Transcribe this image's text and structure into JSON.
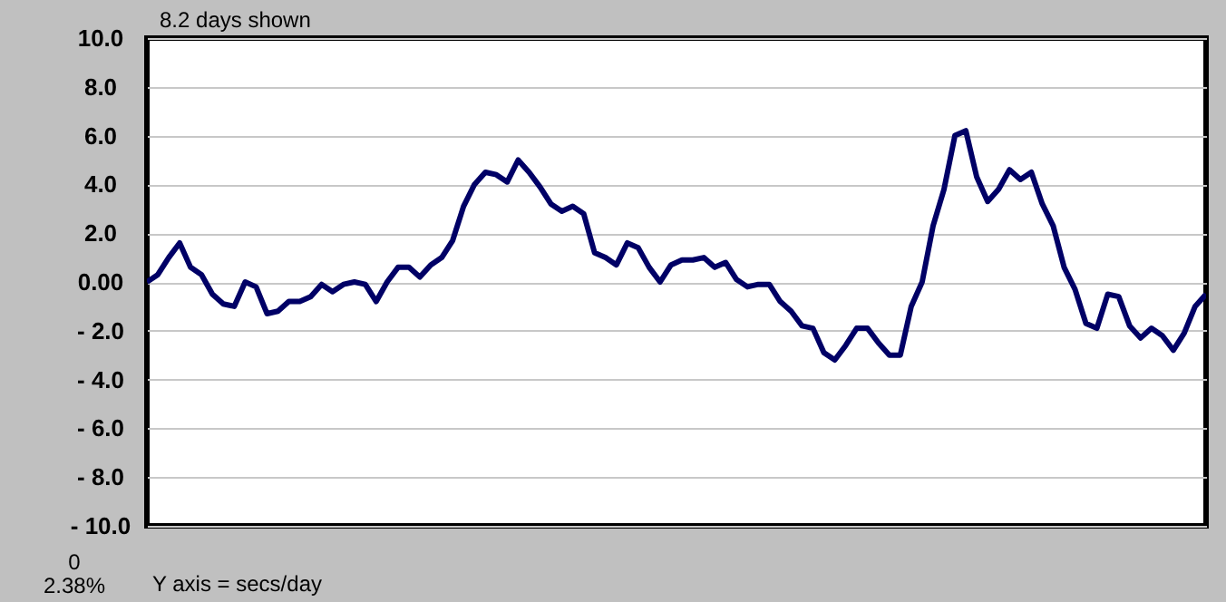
{
  "chart_data": {
    "type": "line",
    "title": "8.2 days shown",
    "annotations": [
      "0",
      "2.38%",
      "Y axis = secs/day"
    ],
    "categories": [
      null,
      null,
      null,
      null,
      null,
      null,
      null,
      null,
      null,
      null,
      null,
      null,
      null,
      null,
      null,
      null,
      null,
      null,
      null,
      null,
      null,
      null,
      null,
      null,
      null,
      null,
      null,
      null,
      null,
      null,
      null,
      null,
      null,
      null,
      null,
      null,
      null,
      null,
      null,
      null,
      null,
      null,
      null,
      null,
      null,
      null,
      null,
      null,
      null,
      null,
      null,
      null,
      null,
      null,
      null,
      null,
      null,
      null,
      null,
      null,
      null,
      null,
      null,
      null,
      null,
      null,
      null,
      null,
      null,
      null,
      null,
      null,
      null,
      null,
      null,
      null,
      null,
      null,
      null,
      null,
      null,
      null,
      null,
      null,
      null,
      null,
      null,
      null,
      null,
      null,
      null,
      null,
      null,
      null,
      null,
      null,
      null,
      null
    ],
    "series": [
      {
        "color": "#000066",
        "values": [
          0,
          0.3,
          1.0,
          1.6,
          0.6,
          0.3,
          -0.5,
          -0.9,
          -1.0,
          0.0,
          -0.2,
          -1.3,
          -1.2,
          -0.8,
          -0.8,
          -0.6,
          -0.1,
          -0.4,
          -0.1,
          0.0,
          -0.1,
          -0.8,
          0.0,
          0.6,
          0.6,
          0.2,
          0.7,
          1.0,
          1.7,
          3.1,
          4.0,
          4.5,
          4.4,
          4.1,
          5.0,
          4.5,
          3.9,
          3.2,
          2.9,
          3.1,
          2.8,
          1.2,
          1.0,
          0.7,
          1.6,
          1.4,
          0.6,
          0.0,
          0.7,
          0.9,
          0.9,
          1.0,
          0.6,
          0.8,
          0.1,
          -0.2,
          -0.1,
          -0.1,
          -0.8,
          -1.2,
          -1.8,
          -1.9,
          -2.9,
          -3.2,
          -2.6,
          -1.9,
          -1.9,
          -2.5,
          -3.0,
          -3.0,
          -1.0,
          0.0,
          2.3,
          3.8,
          6.0,
          6.2,
          4.3,
          3.3,
          3.8,
          4.6,
          4.2,
          4.5,
          3.2,
          2.3,
          0.6,
          -0.3,
          -1.7,
          -1.9,
          -0.5,
          -0.6,
          -1.8,
          -2.3,
          -1.9,
          -2.2,
          -2.8,
          -2.1,
          -1.0,
          -0.5
        ]
      }
    ],
    "ylim": [
      -10,
      10
    ],
    "yticks": [
      {
        "value": 10,
        "label": "10.0"
      },
      {
        "value": 8,
        "label": "8.0"
      },
      {
        "value": 6,
        "label": "6.0"
      },
      {
        "value": 4,
        "label": "4.0"
      },
      {
        "value": 2,
        "label": "2.0"
      },
      {
        "value": 0,
        "label": "0.00"
      },
      {
        "value": -2,
        "label": "- 2.0"
      },
      {
        "value": -4,
        "label": "- 4.0"
      },
      {
        "value": -6,
        "label": "- 6.0"
      },
      {
        "value": -8,
        "label": "- 8.0"
      },
      {
        "value": -10,
        "label": "- 10.0"
      }
    ],
    "grid": "y",
    "tick_labels": "y",
    "marker": "none",
    "line_style": "solid"
  }
}
